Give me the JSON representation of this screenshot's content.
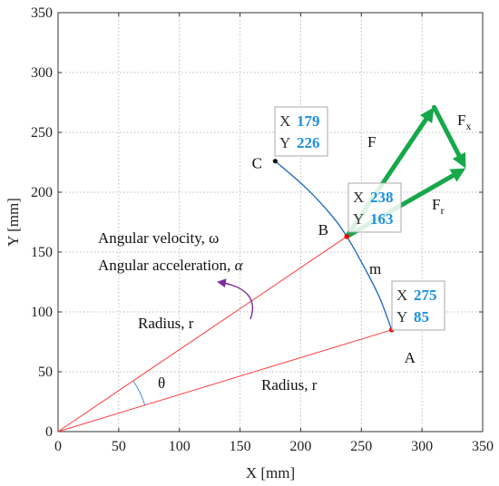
{
  "axes": {
    "xlabel": "X [mm]",
    "ylabel": "Y [mm]",
    "xlim": [
      0,
      350
    ],
    "ylim": [
      0,
      350
    ],
    "xticks": [
      0,
      50,
      100,
      150,
      200,
      250,
      300,
      350
    ],
    "yticks": [
      0,
      50,
      100,
      150,
      200,
      250,
      300,
      350
    ],
    "grid": true,
    "grid_style": "dotted"
  },
  "points": [
    {
      "id": "A",
      "label": "A",
      "x": 275,
      "y": 85
    },
    {
      "id": "B",
      "label": "B",
      "x": 238,
      "y": 163
    },
    {
      "id": "C",
      "label": "C",
      "x": 179,
      "y": 226
    }
  ],
  "datatips": [
    {
      "id": "C",
      "x_key": "X",
      "x_val": "179",
      "y_key": "Y",
      "y_val": "226"
    },
    {
      "id": "B",
      "x_key": "X",
      "x_val": "238",
      "y_key": "Y",
      "y_val": "163"
    },
    {
      "id": "A",
      "x_key": "X",
      "x_val": "275",
      "y_key": "Y",
      "y_val": "85"
    }
  ],
  "radius_lines": [
    {
      "from": [
        0,
        0
      ],
      "to": [
        275,
        85
      ]
    },
    {
      "from": [
        0,
        0
      ],
      "to": [
        238,
        163
      ]
    }
  ],
  "path_curve": [
    [
      179,
      226
    ],
    [
      205,
      203
    ],
    [
      226,
      180
    ],
    [
      238,
      163
    ],
    [
      252,
      138
    ],
    [
      265,
      112
    ],
    [
      275,
      85
    ]
  ],
  "force_vectors": {
    "origin": [
      238,
      163
    ],
    "F_tip": [
      310,
      271
    ],
    "Fr_tip": [
      336,
      220
    ]
  },
  "annotations": {
    "angular_velocity": "Angular velocity, ω",
    "angular_acceleration_prefix": "Angular acceleration, ",
    "angular_acceleration_symbol": "α",
    "radius_upper": "Radius, r",
    "radius_lower": "Radius, r",
    "theta": "θ",
    "mass": "m",
    "force": "F",
    "force_x_base": "F",
    "force_x_sub": "x",
    "force_r_base": "F",
    "force_r_sub": "r"
  },
  "colors": {
    "radius_line": "#ff3b3b",
    "curve": "#1565c0",
    "force": "#16a84a",
    "theta_arc": "#3a8fd6",
    "rotation_arrow": "#7b2d9c",
    "datatip_value": "#1e90e0"
  }
}
